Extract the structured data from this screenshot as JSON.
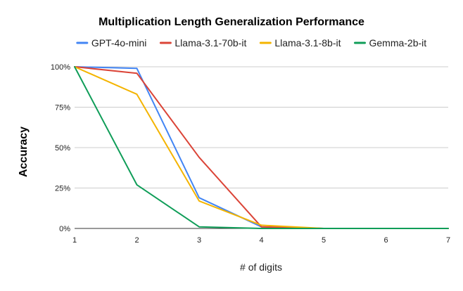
{
  "chart_data": {
    "type": "line",
    "title": "Multiplication Length Generalization Performance",
    "xlabel": "# of digits",
    "ylabel": "Accuracy",
    "x": [
      1,
      2,
      3,
      4,
      5,
      6,
      7
    ],
    "x_tick_labels": [
      "1",
      "2",
      "3",
      "4",
      "5",
      "6",
      "7"
    ],
    "xlim": [
      1,
      7
    ],
    "ylim": [
      0,
      100
    ],
    "y_ticks": [
      0,
      25,
      50,
      75,
      100
    ],
    "y_tick_labels": [
      "0%",
      "25%",
      "50%",
      "75%",
      "100%"
    ],
    "grid": true,
    "legend_position": "top",
    "series": [
      {
        "name": "GPT-4o-mini",
        "color": "#4285f4",
        "values": [
          100,
          99,
          19,
          1,
          0,
          0,
          0
        ]
      },
      {
        "name": "Llama-3.1-70b-it",
        "color": "#db4437",
        "values": [
          100,
          96,
          44,
          1,
          0,
          0,
          0
        ]
      },
      {
        "name": "Llama-3.1-8b-it",
        "color": "#f4b400",
        "values": [
          100,
          83,
          17,
          2,
          0,
          0,
          0
        ]
      },
      {
        "name": "Gemma-2b-it",
        "color": "#0f9d58",
        "values": [
          100,
          27,
          1,
          0,
          0,
          0,
          0
        ]
      }
    ]
  }
}
